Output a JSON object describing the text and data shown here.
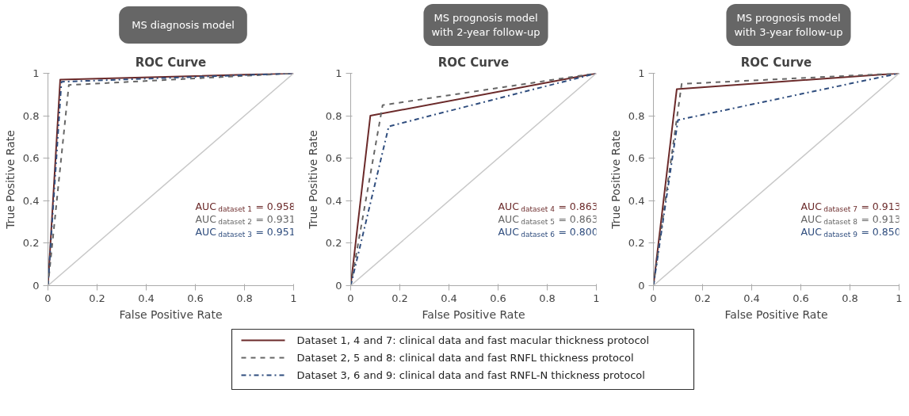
{
  "chart_data": [
    {
      "type": "line",
      "subtitle": "MS diagnosis model",
      "title": "ROC Curve",
      "xlabel": "False Positive Rate",
      "ylabel": "True Positive Rate",
      "xlim": [
        0,
        1
      ],
      "ylim": [
        0,
        1
      ],
      "xticks": [
        0,
        0.2,
        0.4,
        0.6,
        0.8,
        1
      ],
      "yticks": [
        0,
        0.2,
        0.4,
        0.6,
        0.8,
        1
      ],
      "grid": false,
      "marker": "none",
      "legend": "bottom",
      "series": [
        {
          "name": "Dataset 1, 4 and 7: clinical data and fast macular thickness protocol",
          "color": "#6b2a2a",
          "line_style": "solid",
          "x": [
            0,
            0.05,
            1
          ],
          "values": [
            0,
            0.97,
            1
          ]
        },
        {
          "name": "Dataset 2, 5 and 8: clinical data and fast RNFL thickness protocol",
          "color": "#666666",
          "line_style": "dashed",
          "x": [
            0,
            0.085,
            1
          ],
          "values": [
            0,
            0.945,
            1
          ]
        },
        {
          "name": "Dataset 3, 6 and 9: clinical data and fast RNFL-N thickness protocol",
          "color": "#2f4d7e",
          "line_style": "dashdot",
          "x": [
            0,
            0.055,
            1
          ],
          "values": [
            0,
            0.96,
            1
          ]
        },
        {
          "color": "#c8c8c8",
          "line_style": "solid",
          "x": [
            0,
            1
          ],
          "values": [
            0,
            1
          ]
        }
      ],
      "annotations": [
        "AUC$_{dataset 1}$ = 0.958",
        "AUC$_{dataset 2}$ = 0.931",
        "AUC$_{dataset 3}$ = 0.951"
      ]
    },
    {
      "type": "line",
      "subtitle": "MS prognosis model\nwith 2-year follow-up",
      "title": "ROC Curve",
      "xlabel": "False Positive Rate",
      "ylabel": "True Positive Rate",
      "xlim": [
        0,
        1
      ],
      "ylim": [
        0,
        1
      ],
      "xticks": [
        0,
        0.2,
        0.4,
        0.6,
        0.8,
        1
      ],
      "yticks": [
        0,
        0.2,
        0.4,
        0.6,
        0.8,
        1
      ],
      "grid": false,
      "marker": "none",
      "series": [
        {
          "color": "#6b2a2a",
          "line_style": "solid",
          "x": [
            0,
            0.08,
            1
          ],
          "values": [
            0,
            0.8,
            1
          ]
        },
        {
          "color": "#666666",
          "line_style": "dashed",
          "x": [
            0,
            0.13,
            1
          ],
          "values": [
            0,
            0.85,
            1
          ]
        },
        {
          "color": "#2f4d7e",
          "line_style": "dashdot",
          "x": [
            0,
            0.155,
            1
          ],
          "values": [
            0,
            0.75,
            1
          ]
        },
        {
          "color": "#c8c8c8",
          "line_style": "solid",
          "x": [
            0,
            1
          ],
          "values": [
            0,
            1
          ]
        }
      ],
      "annotations": [
        "AUC$_{dataset 4}$ = 0.863",
        "AUC$_{dataset 5}$ = 0.863",
        "AUC$_{dataset 6}$ = 0.800"
      ]
    },
    {
      "type": "line",
      "subtitle": "MS prognosis model\nwith 3-year follow-up",
      "title": "ROC Curve",
      "xlabel": "False Positive Rate",
      "ylabel": "True Positive Rate",
      "xlim": [
        0,
        1
      ],
      "ylim": [
        0,
        1
      ],
      "xticks": [
        0,
        0.2,
        0.4,
        0.6,
        0.8,
        1
      ],
      "yticks": [
        0,
        0.2,
        0.4,
        0.6,
        0.8,
        1
      ],
      "grid": false,
      "marker": "none",
      "series": [
        {
          "color": "#6b2a2a",
          "line_style": "solid",
          "x": [
            0,
            0.095,
            1
          ],
          "values": [
            0,
            0.925,
            1
          ]
        },
        {
          "color": "#666666",
          "line_style": "dashed",
          "x": [
            0,
            0.115,
            1
          ],
          "values": [
            0,
            0.95,
            1
          ]
        },
        {
          "color": "#2f4d7e",
          "line_style": "dashdot",
          "x": [
            0,
            0.1,
            1
          ],
          "values": [
            0,
            0.78,
            1
          ]
        },
        {
          "color": "#c8c8c8",
          "line_style": "solid",
          "x": [
            0,
            1
          ],
          "values": [
            0,
            1
          ]
        }
      ],
      "annotations": [
        "AUC$_{dataset 7}$ = 0.913",
        "AUC$_{dataset 8}$ = 0.913",
        "AUC$_{dataset 9}$ = 0.850"
      ]
    }
  ]
}
